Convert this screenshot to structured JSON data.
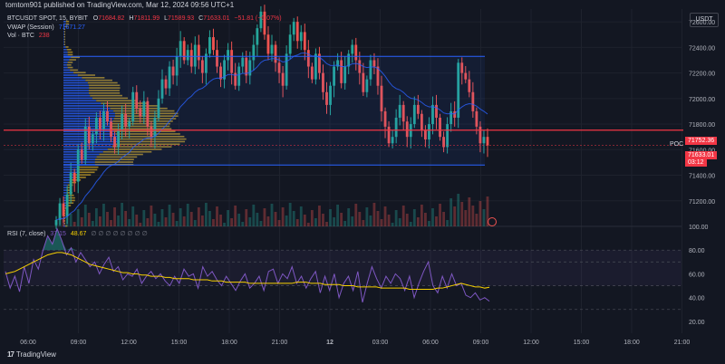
{
  "header": {
    "published": "tomtom901 published on TradingView.com, Mar 12, 2024 09:56 UTC+1"
  },
  "legend": {
    "symbol": "BTCUSDT SPOT, 15, BYBIT",
    "ohlc": {
      "o_label": "O",
      "o": "71684.82",
      "h_label": "H",
      "h": "71811.99",
      "l_label": "L",
      "l": "71589.93",
      "c_label": "C",
      "c": "71633.01",
      "change": "−51.81 (−0.07%)"
    },
    "vwap_label": "VWAP (Session)",
    "vwap_value": "71671.27",
    "vol_label": "Vol · BTC",
    "vol_value": "238",
    "rsi_label": "RSI (7, close)",
    "rsi_value": "37.15",
    "rsi_ma_value": "48.67",
    "rsi_dots": "∅ ∅ ∅ ∅ ∅ ∅ ∅ ∅"
  },
  "currency_button": "USDT",
  "poc_label": "POC",
  "price_badges": {
    "poc_price": "71752.36",
    "last_price": "71633.01",
    "countdown": "03:12"
  },
  "branding": {
    "logo_text": "TradingView"
  },
  "colors": {
    "up": "#26a69a",
    "down": "#ef5350",
    "poc": "#f23645",
    "range": "#2962ff",
    "vp_up": "#2962ff",
    "vp_down": "#c9a227",
    "rsi": "#7e57c2",
    "rsi_ma": "#f7d000",
    "vwap": "#2962ff"
  },
  "chart_data": [
    {
      "type": "candlestick",
      "title": "BTCUSDT SPOT, 15, BYBIT",
      "price_ticks": [
        71200,
        71400,
        71600,
        71800,
        72000,
        72200,
        72400,
        72600
      ],
      "price_tick_labels": [
        "71200.00",
        "71400.00",
        "71600.00",
        "71800.00",
        "72000.00",
        "72200.00",
        "72400.00",
        "72600.00"
      ],
      "ylim": [
        71000,
        72700
      ],
      "time_ticks": [
        "06:00",
        "09:00",
        "12:00",
        "15:00",
        "18:00",
        "21:00",
        "12",
        "03:00",
        "06:00",
        "09:00",
        "12:00",
        "15:00",
        "18:00",
        "21:00"
      ],
      "value_area_high": 72330,
      "value_area_low": 71480,
      "poc": 71752.36,
      "last_price": 71633.01,
      "vwap_last": 71671.27,
      "closes": [
        71050,
        71180,
        71080,
        71250,
        71420,
        71350,
        71600,
        71520,
        71780,
        71650,
        71720,
        71850,
        71760,
        71900,
        71820,
        71700,
        71620,
        71750,
        71880,
        71780,
        71820,
        72050,
        71920,
        71860,
        71980,
        71780,
        71700,
        71850,
        72000,
        72150,
        72080,
        72250,
        72180,
        72330,
        72450,
        72300,
        72380,
        72250,
        72420,
        72300,
        72200,
        72350,
        72480,
        72380,
        72250,
        72150,
        72300,
        72380,
        72200,
        72100,
        72250,
        72320,
        72180,
        72300,
        72420,
        72550,
        72680,
        72500,
        72350,
        72420,
        72280,
        72200,
        72100,
        72350,
        72500,
        72600,
        72450,
        72520,
        72380,
        72250,
        72150,
        72350,
        72200,
        72050,
        71950,
        72100,
        72250,
        72300,
        72120,
        72250,
        72350,
        72420,
        72300,
        72200,
        72050,
        72150,
        72300,
        72250,
        72100,
        71900,
        71780,
        71650,
        71700,
        71850,
        71950,
        71820,
        71700,
        71800,
        71950,
        71880,
        71750,
        71680,
        71800,
        71950,
        71850,
        71700,
        71620,
        71800,
        71900,
        71850,
        72280,
        72200,
        72150,
        72050,
        71900,
        71780,
        71650,
        71700,
        71633
      ]
    },
    {
      "type": "line",
      "title": "RSI (7, close)",
      "ylim": [
        10,
        100
      ],
      "ticks": [
        20,
        40,
        60,
        80,
        100
      ],
      "tick_labels": [
        "20.00",
        "40.00",
        "60.00",
        "80.00",
        "100.00"
      ],
      "bands": [
        30,
        50,
        70,
        80
      ],
      "series": [
        {
          "name": "RSI",
          "values": [
            62,
            48,
            58,
            45,
            66,
            52,
            72,
            64,
            80,
            92,
            85,
            98,
            88,
            76,
            82,
            70,
            78,
            72,
            66,
            70,
            60,
            68,
            74,
            62,
            66,
            55,
            60,
            58,
            64,
            52,
            58,
            62,
            56,
            60,
            54,
            50,
            58,
            52,
            64,
            58,
            60,
            48,
            66,
            58,
            62,
            55,
            50,
            58,
            52,
            46,
            54,
            60,
            48,
            52,
            58,
            46,
            62,
            64,
            52,
            60,
            56,
            66,
            52,
            58,
            48,
            56,
            62,
            44,
            58,
            46,
            60,
            40,
            52,
            58,
            46,
            62,
            36,
            52,
            66,
            56,
            48,
            58,
            52,
            60,
            56,
            46,
            58,
            40,
            52,
            62,
            70,
            50,
            44,
            58,
            48,
            60,
            50,
            52,
            42,
            40,
            44,
            38,
            40,
            37
          ]
        },
        {
          "name": "RSI MA",
          "values": [
            60,
            61,
            62,
            64,
            66,
            68,
            70,
            72,
            74,
            76,
            77,
            78,
            78,
            77,
            76,
            74,
            72,
            70,
            68,
            67,
            66,
            65,
            64,
            63,
            62,
            61,
            61,
            60,
            60,
            59,
            59,
            58,
            58,
            58,
            57,
            57,
            56,
            56,
            56,
            56,
            55,
            55,
            55,
            55,
            54,
            54,
            54,
            53,
            53,
            53,
            53,
            53,
            52,
            52,
            52,
            52,
            52,
            52,
            52,
            52,
            52,
            52,
            53,
            53,
            53,
            52,
            52,
            52,
            51,
            51,
            51,
            51,
            50,
            50,
            50,
            49,
            49,
            49,
            49,
            49,
            48,
            48,
            48,
            48,
            48,
            48,
            47,
            47,
            47,
            47,
            47,
            47,
            48,
            48,
            49,
            50,
            51,
            52,
            51,
            50,
            49,
            49,
            48,
            48.67
          ]
        }
      ]
    }
  ]
}
